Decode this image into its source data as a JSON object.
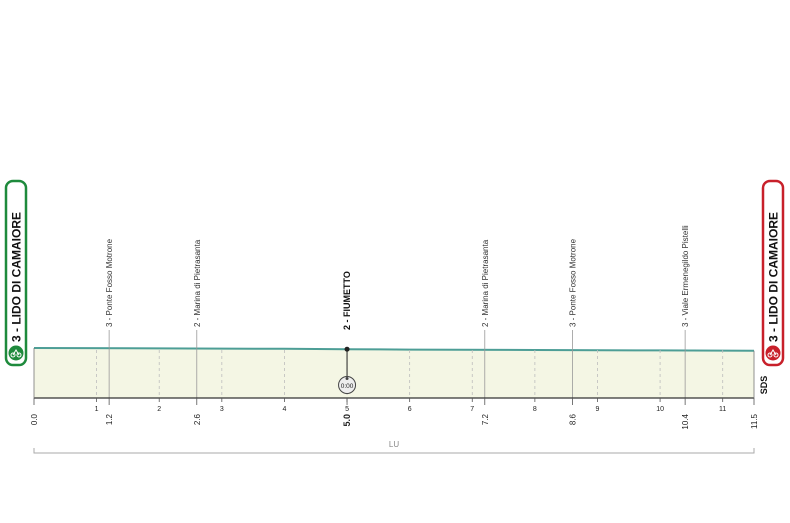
{
  "chart_data": {
    "type": "area",
    "x": [
      0.0,
      2.0,
      4.0,
      5.0,
      6.0,
      8.0,
      10.0,
      11.5
    ],
    "values": [
      3,
      2.9,
      2.8,
      2.7,
      2.6,
      2.5,
      2.4,
      2.3
    ],
    "xlim": [
      0,
      11.5
    ],
    "x_ticks": [
      "1",
      "2",
      "3",
      "4",
      "5",
      "6",
      "7",
      "8",
      "9",
      "10",
      "11"
    ],
    "km_labels": [
      {
        "km": 0.0,
        "label": "0.0"
      },
      {
        "km": 1.2,
        "label": "1.2"
      },
      {
        "km": 2.6,
        "label": "2.6"
      },
      {
        "km": 5.0,
        "label": "5.0"
      },
      {
        "km": 7.2,
        "label": "7.2"
      },
      {
        "km": 8.6,
        "label": "8.6"
      },
      {
        "km": 10.4,
        "label": "10.4"
      },
      {
        "km": 11.5,
        "label": "11.5"
      }
    ],
    "waypoints": [
      {
        "km": 1.2,
        "label": "3 - Ponte Fosso Motrone"
      },
      {
        "km": 2.6,
        "label": "2 - Marina di Pietrasanta"
      },
      {
        "km": 7.2,
        "label": "2 - Marina di Pietrasanta"
      },
      {
        "km": 8.6,
        "label": "3 - Ponte Fosso Motrone"
      },
      {
        "km": 10.4,
        "label": "3 - Viale Ermenegildo Pistelli"
      }
    ],
    "checkpoint": {
      "km": 5.0,
      "label": "2 - FIUMETTO",
      "timer": "0:00"
    },
    "start": {
      "label": "3 - LIDO DI CAMAIORE",
      "color": "#1e8a3c"
    },
    "finish": {
      "label": "3 - LIDO DI CAMAIORE",
      "color": "#c8202a"
    },
    "region": "LU",
    "badge": "SDS",
    "fill_color": "#f4f6e4",
    "line_color": "#4d9e96"
  }
}
